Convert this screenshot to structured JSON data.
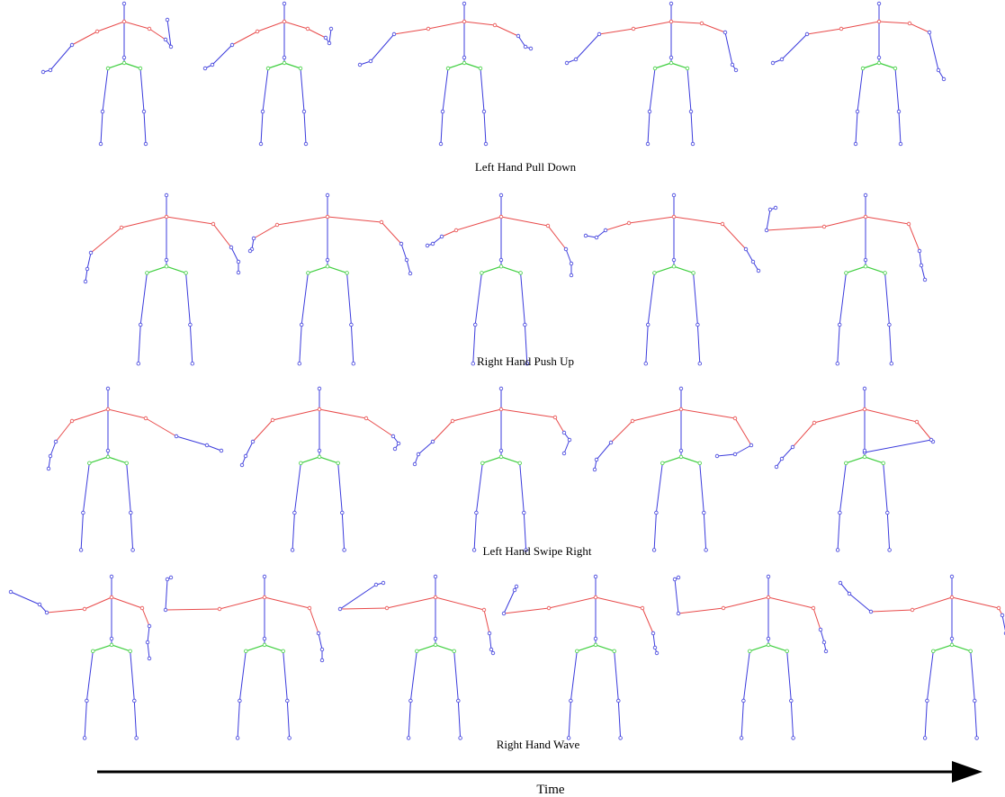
{
  "rows": [
    {
      "label": "Left Hand Pull Down",
      "frames": 5
    },
    {
      "label": "Right Hand Push Up",
      "frames": 5
    },
    {
      "label": "Left Hand Swipe Right",
      "frames": 5
    },
    {
      "label": "Right Hand Wave",
      "frames": 6
    }
  ],
  "timeline": {
    "label": "Time"
  },
  "colors": {
    "limbs": "#3b3bdc",
    "shoulders": "#e84a4a",
    "hips": "#3fcf3f",
    "text": "#000000"
  }
}
